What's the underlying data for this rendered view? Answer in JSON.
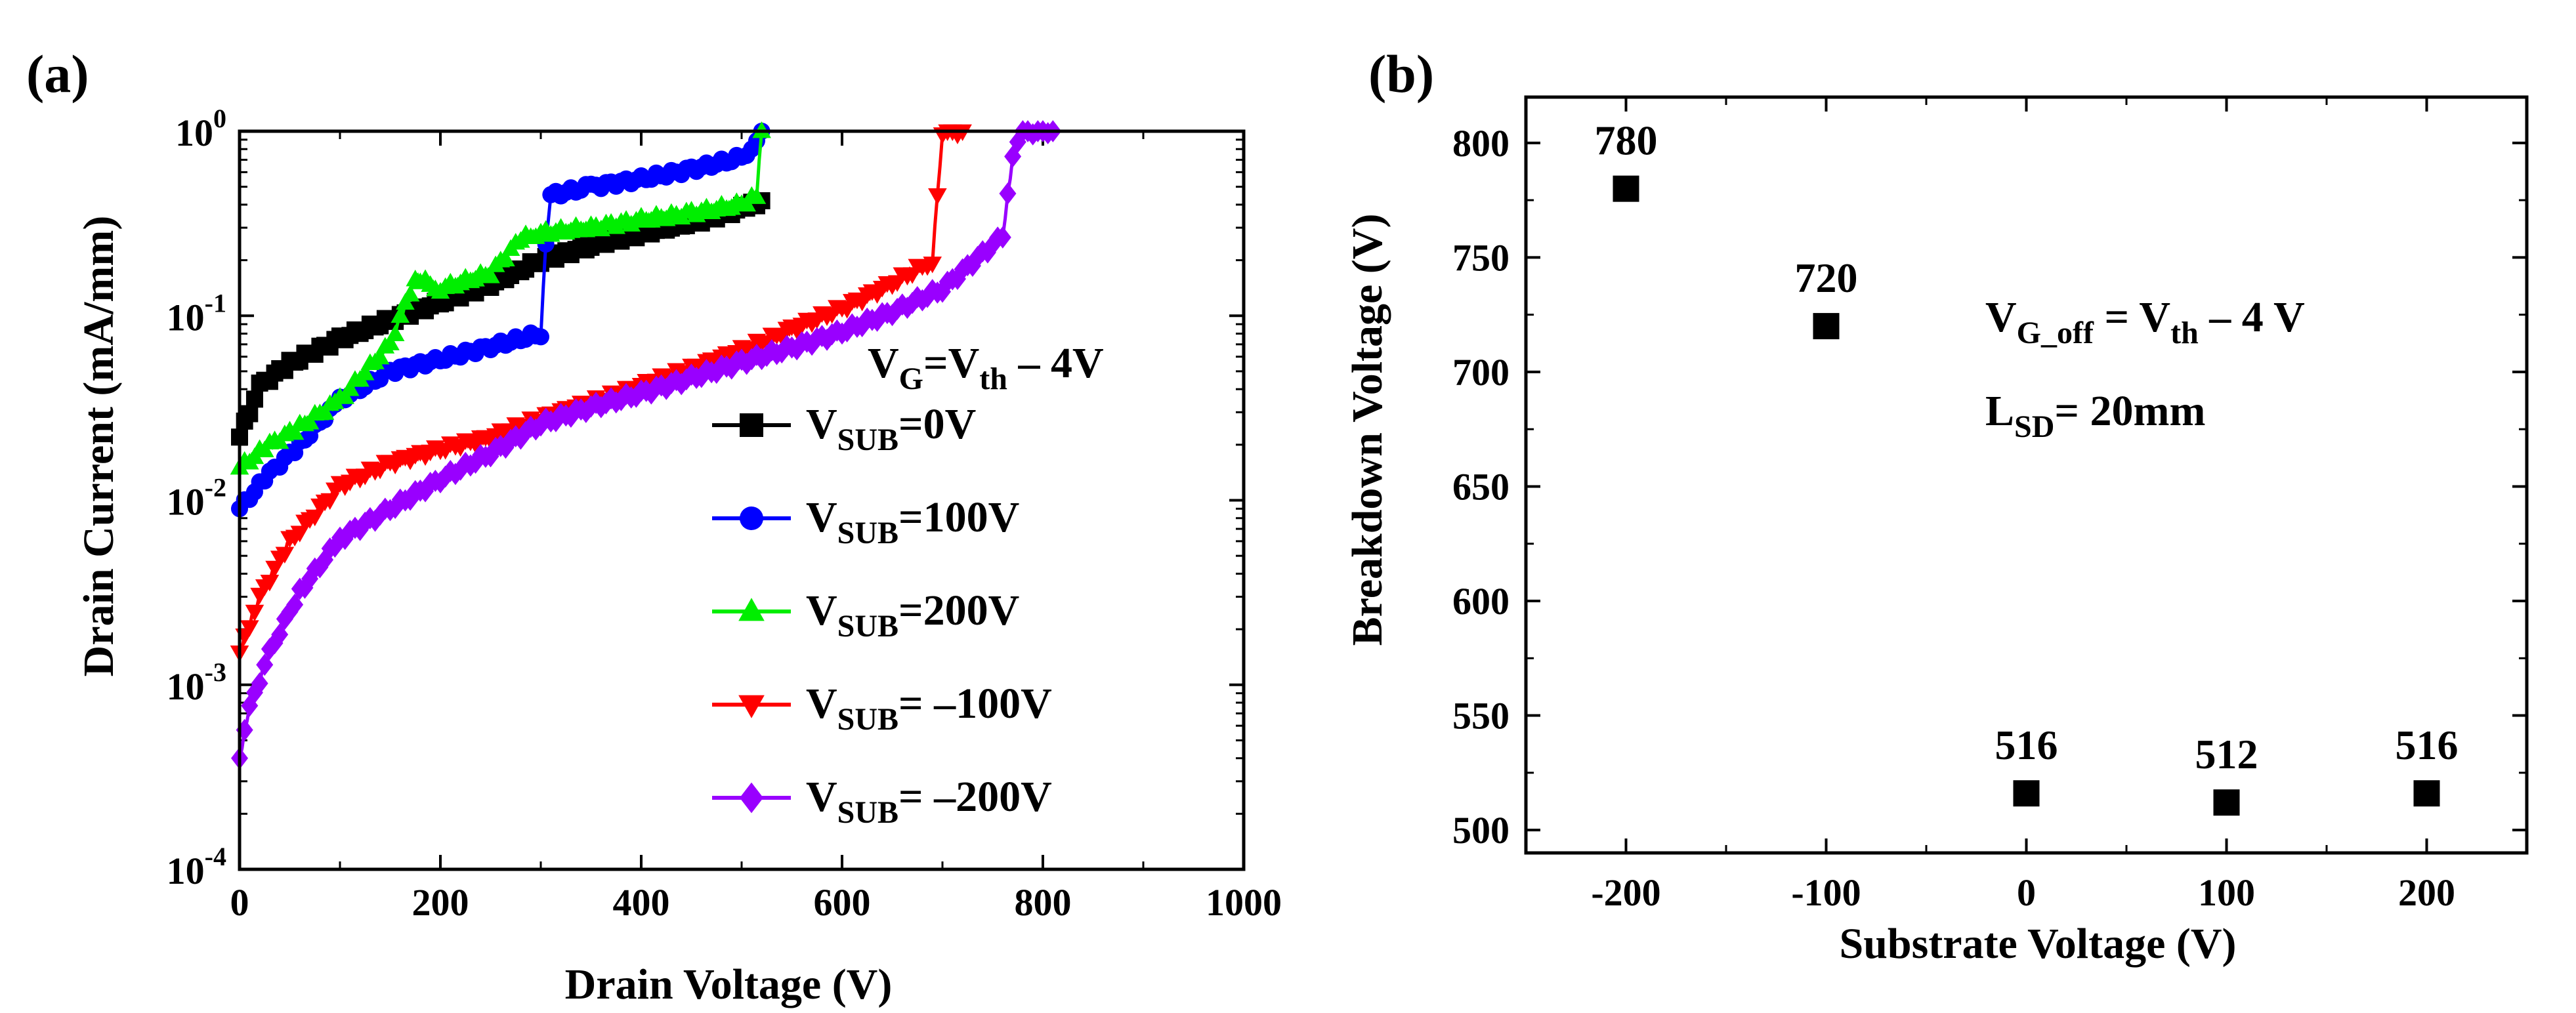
{
  "chart_data": [
    {
      "panel_label": "(a)",
      "type": "line",
      "xlabel": "Drain Voltage (V)",
      "ylabel": "Drain Current (mA/mm)",
      "xlim": [
        0,
        1000
      ],
      "ylim": [
        0.0001,
        1
      ],
      "yscale": "log",
      "xticks": [
        0,
        200,
        400,
        600,
        800,
        1000
      ],
      "yticks": [
        {
          "value": 0.0001,
          "base": "10",
          "exp": "-4"
        },
        {
          "value": 0.001,
          "base": "10",
          "exp": "-3"
        },
        {
          "value": 0.01,
          "base": "10",
          "exp": "-2"
        },
        {
          "value": 0.1,
          "base": "10",
          "exp": "-1"
        },
        {
          "value": 1,
          "base": "10",
          "exp": "0"
        }
      ],
      "grid": false,
      "legend_position": "bottom-right",
      "annotation": {
        "V": "V",
        "G_sub": "G",
        "mid": "=V",
        "th_sub": "th",
        "tail": " – 4V"
      },
      "series": [
        {
          "name": "V_SUB=0V",
          "label_main": "V",
          "label_sub": "SUB",
          "label_tail": "=0V",
          "color": "#000000",
          "marker": "square",
          "x": [
            0,
            20,
            50,
            100,
            150,
            200,
            250,
            300,
            350,
            400,
            450,
            500,
            510,
            520
          ],
          "y": [
            0.022,
            0.042,
            0.055,
            0.075,
            0.095,
            0.118,
            0.148,
            0.2,
            0.24,
            0.28,
            0.32,
            0.38,
            0.4,
            0.42
          ]
        },
        {
          "name": "V_SUB=100V",
          "label_main": "V",
          "label_sub": "SUB",
          "label_tail": "=100V",
          "color": "#0000ff",
          "marker": "circle",
          "x": [
            0,
            30,
            60,
            100,
            150,
            200,
            250,
            300,
            305,
            310,
            350,
            400,
            450,
            500,
            510,
            520
          ],
          "y": [
            0.009,
            0.014,
            0.02,
            0.035,
            0.05,
            0.058,
            0.068,
            0.08,
            0.25,
            0.45,
            0.5,
            0.55,
            0.62,
            0.72,
            0.82,
            1.0
          ]
        },
        {
          "name": "V_SUB=200V",
          "label_main": "V",
          "label_sub": "SUB",
          "label_tail": "=200V",
          "color": "#00ee00",
          "marker": "triangle-up",
          "x": [
            0,
            30,
            60,
            100,
            150,
            175,
            200,
            250,
            280,
            300,
            350,
            400,
            450,
            500,
            515,
            520
          ],
          "y": [
            0.015,
            0.02,
            0.025,
            0.035,
            0.07,
            0.16,
            0.14,
            0.17,
            0.26,
            0.28,
            0.3,
            0.33,
            0.36,
            0.4,
            0.45,
            1.0
          ]
        },
        {
          "name": "V_SUB= –100V",
          "label_main": "V",
          "label_sub": "SUB",
          "label_tail": "= –100V",
          "color": "#ff0000",
          "marker": "triangle-down",
          "x": [
            0,
            20,
            50,
            100,
            150,
            200,
            250,
            300,
            350,
            400,
            450,
            500,
            550,
            600,
            650,
            690,
            700,
            720
          ],
          "y": [
            0.0015,
            0.003,
            0.006,
            0.012,
            0.016,
            0.019,
            0.022,
            0.028,
            0.034,
            0.042,
            0.052,
            0.065,
            0.085,
            0.11,
            0.15,
            0.2,
            1.0,
            1.0
          ]
        },
        {
          "name": "V_SUB= –200V",
          "label_main": "V",
          "label_sub": "SUB",
          "label_tail": "= –200V",
          "color": "#9900ff",
          "marker": "diamond",
          "x": [
            0,
            10,
            30,
            60,
            100,
            150,
            200,
            250,
            300,
            350,
            400,
            450,
            500,
            550,
            600,
            650,
            700,
            760,
            770,
            780,
            800,
            810
          ],
          "y": [
            0.0004,
            0.00075,
            0.0015,
            0.0032,
            0.0062,
            0.009,
            0.013,
            0.018,
            0.026,
            0.032,
            0.038,
            0.046,
            0.056,
            0.067,
            0.082,
            0.105,
            0.14,
            0.27,
            0.72,
            1.0,
            1.0,
            1.0
          ]
        }
      ]
    },
    {
      "panel_label": "(b)",
      "type": "scatter",
      "xlabel": "Substrate Voltage (V)",
      "ylabel": "Breakdown Voltage (V)",
      "xlim": [
        -250,
        250
      ],
      "ylim": [
        490,
        820
      ],
      "xticks": [
        -200,
        -100,
        0,
        100,
        200
      ],
      "yticks": [
        500,
        550,
        600,
        650,
        700,
        750,
        800
      ],
      "grid": false,
      "marker": "square",
      "color": "#000000",
      "x": [
        -200,
        -100,
        0,
        100,
        200
      ],
      "y": [
        780,
        720,
        516,
        512,
        516
      ],
      "point_labels": [
        "780",
        "720",
        "516",
        "512",
        "516"
      ],
      "annotation_1": {
        "V": "V",
        "sub": "G_off",
        "mid": " = V",
        "th_sub": "th",
        "tail": " – 4 V"
      },
      "annotation_2": {
        "L": "L",
        "sub": "SD",
        "tail": "= 20mm"
      }
    }
  ]
}
